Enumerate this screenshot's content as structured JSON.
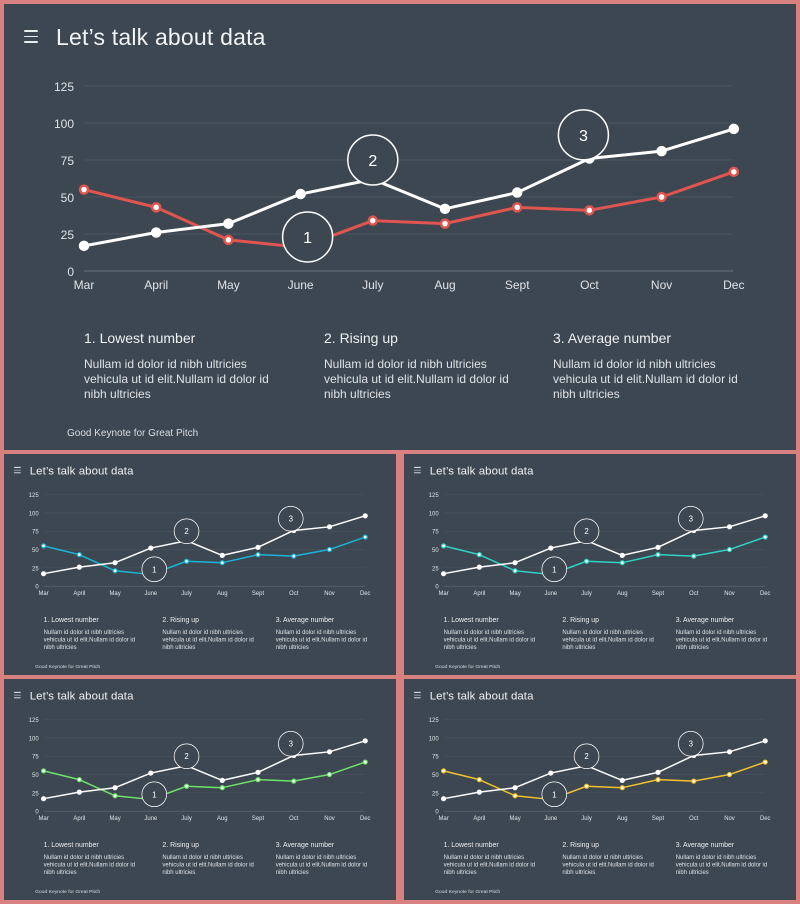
{
  "title": "Let’s talk about data",
  "footer": "Good Keynote for Great Pitch",
  "notes": [
    {
      "heading": "1. Lowest number",
      "body": "Nullam id dolor id nibh ultricies vehicula ut id elit.Nullam id dolor id nibh ultricies"
    },
    {
      "heading": "2. Rising up",
      "body": "Nullam id dolor id nibh ultricies vehicula ut id elit.Nullam id dolor id nibh ultricies"
    },
    {
      "heading": "3. Average number",
      "body": "Nullam id dolor id nibh ultricies vehicula ut id elit.Nullam id dolor id nibh ultricies"
    }
  ],
  "colors": {
    "background": "#3d4751",
    "border": "#d98080",
    "series_white": "#ffffff",
    "variants": [
      "#e0554f",
      "#19b5d8",
      "#2fd3c6",
      "#6ee36a",
      "#f2c12e"
    ]
  },
  "chart_data": {
    "type": "line",
    "categories": [
      "Mar",
      "April",
      "May",
      "June",
      "July",
      "Aug",
      "Sept",
      "Oct",
      "Nov",
      "Dec"
    ],
    "yticks": [
      0,
      25,
      50,
      75,
      100,
      125
    ],
    "ylim": [
      0,
      125
    ],
    "grid": true,
    "series": [
      {
        "values": [
          17,
          26,
          32,
          52,
          62,
          42,
          53,
          76,
          81,
          96
        ],
        "color": "#ffffff"
      },
      {
        "values": [
          55,
          43,
          21,
          16,
          34,
          32,
          43,
          41,
          50,
          67
        ],
        "color": "accent"
      }
    ],
    "annotations": [
      {
        "label": "1",
        "category_index": 3,
        "value": 23
      },
      {
        "label": "2",
        "category_index": 4,
        "value": 75
      },
      {
        "label": "3",
        "category_index": 7,
        "value": 92
      }
    ]
  }
}
